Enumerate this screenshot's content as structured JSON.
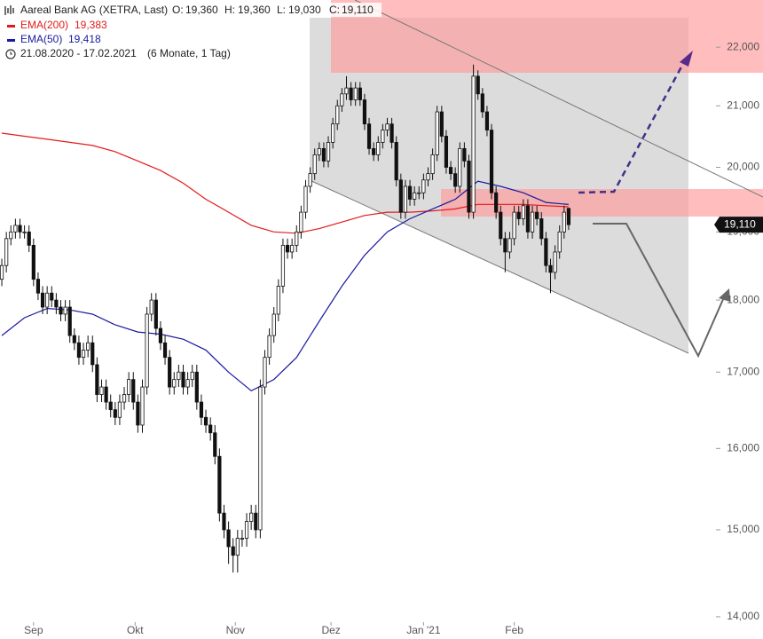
{
  "chart_data": {
    "type": "candlestick",
    "title": "Aareal Bank AG (XETRA, Last)",
    "quote": [
      {
        "name": "O:",
        "value": 19360,
        "label": "19,360"
      },
      {
        "name": "H:",
        "value": 19360,
        "label": "19,360"
      },
      {
        "name": "L:",
        "value": 19030,
        "label": "19,030"
      },
      {
        "name": "C:",
        "value": 19110,
        "label": "19,110"
      }
    ],
    "date_range": "21.08.2020 - 17.02.2021",
    "period": "(6 Monate, 1 Tag)",
    "open": [
      18300,
      18500,
      18900,
      19000,
      19100,
      19000,
      19000,
      18800,
      18300,
      18100,
      17900,
      18100,
      18000,
      17900,
      17800,
      17900,
      17500,
      17400,
      17200,
      17300,
      17400,
      17100,
      16700,
      16800,
      16600,
      16500,
      16400,
      16600,
      16700,
      16900,
      16600,
      16300,
      16800,
      17800,
      18000,
      17600,
      17400,
      17200,
      16800,
      16900,
      17000,
      16800,
      16900,
      17000,
      16600,
      16400,
      16300,
      16200,
      15900,
      15200,
      15000,
      14800,
      14700,
      14900,
      14900,
      15100,
      15200,
      15000,
      16800,
      17200,
      17500,
      17800,
      18200,
      18800,
      18700,
      18800,
      19000,
      19300,
      19700,
      19900,
      20200,
      20300,
      20100,
      20400,
      20700,
      21000,
      21200,
      21300,
      21100,
      21300,
      21100,
      20700,
      20300,
      20200,
      20400,
      20600,
      20700,
      20400,
      19800,
      19300,
      19700,
      19500,
      19600,
      19600,
      19800,
      19900,
      20200,
      20900,
      20500,
      20000,
      19900,
      19700,
      20300,
      20100,
      19300,
      21500,
      21200,
      20900,
      20600,
      19600,
      19300,
      18900,
      18700,
      18900,
      19300,
      19200,
      19400,
      19000,
      19300,
      19200,
      18900,
      18500,
      18400,
      18700,
      19000,
      19360
    ],
    "high": [
      18600,
      19000,
      19100,
      19200,
      19200,
      19100,
      19100,
      18900,
      18400,
      18200,
      18200,
      18200,
      18100,
      18000,
      18000,
      18000,
      17600,
      17500,
      17400,
      17500,
      17500,
      17200,
      16900,
      16900,
      16700,
      16600,
      16700,
      16800,
      17000,
      17000,
      16700,
      16900,
      17900,
      18100,
      18100,
      17700,
      17500,
      17300,
      17000,
      17100,
      17100,
      17000,
      17100,
      17100,
      16700,
      16500,
      16400,
      16300,
      16000,
      15300,
      15100,
      14900,
      15000,
      15000,
      15200,
      15300,
      15300,
      16900,
      17300,
      17600,
      17900,
      18300,
      18900,
      18900,
      18900,
      19100,
      19400,
      19800,
      20000,
      20300,
      20400,
      20400,
      20500,
      20800,
      21100,
      21300,
      21500,
      21400,
      21400,
      21400,
      21200,
      20800,
      20400,
      20500,
      20700,
      20800,
      20800,
      20500,
      19900,
      19800,
      19800,
      19700,
      19700,
      19900,
      20000,
      20300,
      21000,
      21000,
      20600,
      20100,
      20000,
      20400,
      20400,
      20200,
      21700,
      21600,
      21300,
      21000,
      20700,
      19700,
      19400,
      19000,
      19000,
      19400,
      19400,
      19500,
      19500,
      19400,
      19400,
      19300,
      19000,
      18600,
      18800,
      19100,
      19400,
      19360
    ],
    "low": [
      18200,
      18400,
      18800,
      18900,
      18900,
      18900,
      18700,
      18200,
      18000,
      17800,
      17800,
      17900,
      17800,
      17700,
      17700,
      17400,
      17300,
      17100,
      17100,
      17200,
      17000,
      16600,
      16600,
      16500,
      16400,
      16300,
      16300,
      16500,
      16600,
      16500,
      16200,
      16200,
      16700,
      17700,
      17500,
      17300,
      17100,
      16700,
      16700,
      16800,
      16700,
      16700,
      16800,
      16500,
      16300,
      16200,
      16100,
      15800,
      15100,
      14900,
      14600,
      14500,
      14500,
      14800,
      14800,
      15000,
      14900,
      14900,
      16700,
      17100,
      17400,
      17700,
      18100,
      18600,
      18600,
      18700,
      18900,
      19200,
      19600,
      19800,
      20100,
      20000,
      20000,
      20300,
      20600,
      20900,
      21100,
      21000,
      21000,
      21000,
      20600,
      20200,
      20100,
      20100,
      20300,
      20500,
      20300,
      19700,
      19200,
      19200,
      19400,
      19400,
      19500,
      19500,
      19700,
      19800,
      20100,
      20400,
      19900,
      19800,
      19600,
      19600,
      20000,
      19200,
      19200,
      21100,
      20800,
      20500,
      19500,
      19200,
      18800,
      18400,
      18600,
      18800,
      19100,
      19100,
      18900,
      18900,
      19100,
      18800,
      18400,
      18100,
      18300,
      18600,
      18900,
      19030
    ],
    "close": [
      18500,
      18900,
      19000,
      19100,
      19000,
      19000,
      18800,
      18300,
      18100,
      17900,
      18100,
      18000,
      17900,
      17800,
      17900,
      17500,
      17400,
      17200,
      17300,
      17400,
      17100,
      16700,
      16800,
      16600,
      16500,
      16400,
      16600,
      16700,
      16900,
      16600,
      16300,
      16800,
      17800,
      18000,
      17600,
      17400,
      17200,
      16800,
      16900,
      17000,
      16800,
      16900,
      17000,
      16600,
      16400,
      16300,
      16200,
      15900,
      15200,
      15000,
      14800,
      14700,
      14900,
      14900,
      15100,
      15200,
      15000,
      16800,
      17200,
      17500,
      17800,
      18200,
      18800,
      18700,
      18800,
      19000,
      19300,
      19700,
      19900,
      20200,
      20300,
      20100,
      20400,
      20700,
      21000,
      21200,
      21300,
      21100,
      21300,
      21100,
      20700,
      20300,
      20200,
      20400,
      20600,
      20700,
      20400,
      19800,
      19300,
      19700,
      19500,
      19600,
      19600,
      19800,
      19900,
      20200,
      20900,
      20500,
      20000,
      19900,
      19700,
      20300,
      20100,
      19300,
      21500,
      21200,
      20900,
      20600,
      19600,
      19300,
      18900,
      18700,
      18900,
      19300,
      19200,
      19400,
      19000,
      19300,
      19200,
      18900,
      18500,
      18400,
      18700,
      19000,
      19300,
      19110
    ],
    "series": [
      {
        "name": "EMA(200)",
        "color": "#e41a1a",
        "value": 19383,
        "value_label": "19,383",
        "x": [
          0,
          5,
          10,
          15,
          20,
          25,
          30,
          35,
          40,
          45,
          50,
          55,
          60,
          65,
          70,
          75,
          80,
          85,
          90,
          95,
          100,
          105,
          110,
          115,
          120,
          125
        ],
        "values": [
          20550,
          20500,
          20450,
          20400,
          20350,
          20250,
          20100,
          19950,
          19750,
          19500,
          19300,
          19100,
          19000,
          18980,
          19050,
          19150,
          19250,
          19300,
          19300,
          19320,
          19350,
          19420,
          19420,
          19420,
          19400,
          19383
        ]
      },
      {
        "name": "EMA(50)",
        "color": "#1a1aa0",
        "value": 19418,
        "value_label": "19,418",
        "x": [
          0,
          5,
          10,
          15,
          20,
          25,
          30,
          35,
          40,
          45,
          50,
          55,
          60,
          65,
          70,
          75,
          80,
          85,
          90,
          95,
          100,
          105,
          110,
          115,
          120,
          125
        ],
        "values": [
          17500,
          17750,
          17880,
          17860,
          17800,
          17650,
          17550,
          17520,
          17450,
          17300,
          17000,
          16750,
          16900,
          17200,
          17700,
          18200,
          18650,
          19000,
          19200,
          19350,
          19500,
          19780,
          19700,
          19600,
          19450,
          19418
        ]
      }
    ],
    "xlim": [
      -0.4,
      157.1
    ],
    "xticks": [
      {
        "value": 7,
        "label": "Sep"
      },
      {
        "value": 29.4,
        "label": "Okt"
      },
      {
        "value": 51.5,
        "label": "Nov"
      },
      {
        "value": 72.6,
        "label": "Dez"
      },
      {
        "value": 93,
        "label": "Jan '21"
      },
      {
        "value": 113,
        "label": "Feb"
      }
    ],
    "ylim": [
      13950,
      22840
    ],
    "log_y": true,
    "yticks": [
      {
        "value": 14000,
        "label": "14,000"
      },
      {
        "value": 15000,
        "label": "15,000"
      },
      {
        "value": 16000,
        "label": "16,000"
      },
      {
        "value": 17000,
        "label": "17,000"
      },
      {
        "value": 18000,
        "label": "18,000"
      },
      {
        "value": 19000,
        "label": "19,000"
      },
      {
        "value": 20000,
        "label": "20,000"
      },
      {
        "value": 21000,
        "label": "21,000"
      },
      {
        "value": 22000,
        "label": "22,000"
      }
    ],
    "last_price": {
      "value": 19110,
      "label": "19,110"
    }
  }
}
